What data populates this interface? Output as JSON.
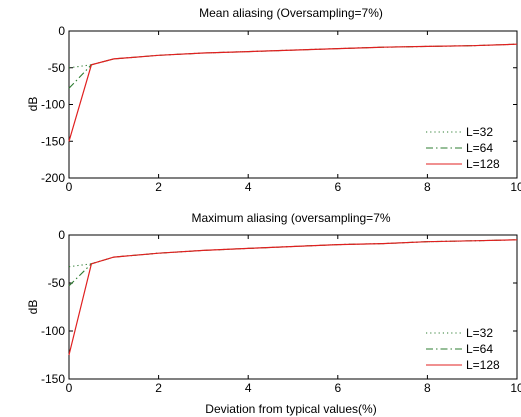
{
  "chart_data": [
    {
      "type": "line",
      "title": "Mean aliasing (Oversampling=7%)",
      "xlabel": "",
      "ylabel": "dB",
      "xlim": [
        0,
        10
      ],
      "ylim": [
        -200,
        0
      ],
      "xticks": [
        "0",
        "2",
        "4",
        "6",
        "8",
        "10"
      ],
      "yticks": [
        "0",
        "-50",
        "-100",
        "-150",
        "-200"
      ],
      "grid": false,
      "legend": "bottom-right",
      "series": [
        {
          "name": "L=32",
          "style": "dotted",
          "color": "#2e7d32",
          "x": [
            0,
            0.5,
            1,
            2,
            3,
            4,
            5,
            6,
            7,
            8,
            9,
            10
          ],
          "y": [
            -50,
            -46,
            -38,
            -33,
            -30,
            -28,
            -26,
            -24,
            -22,
            -21,
            -20,
            -18
          ]
        },
        {
          "name": "L=64",
          "style": "dashdot",
          "color": "#2e7d32",
          "x": [
            0,
            0.5,
            1,
            2,
            3,
            4,
            5,
            6,
            7,
            8,
            9,
            10
          ],
          "y": [
            -78,
            -46,
            -38,
            -33,
            -30,
            -28,
            -26,
            -24,
            -22,
            -21,
            -20,
            -18
          ]
        },
        {
          "name": "L=128",
          "style": "solid",
          "color": "#e02020",
          "x": [
            0,
            0.5,
            1,
            2,
            3,
            4,
            5,
            6,
            7,
            8,
            9,
            10
          ],
          "y": [
            -150,
            -46,
            -38,
            -33,
            -30,
            -28,
            -26,
            -24,
            -22,
            -21,
            -20,
            -18
          ]
        }
      ]
    },
    {
      "type": "line",
      "title": "Maximum aliasing (oversampling=7%",
      "xlabel": "Deviation from typical values(%)",
      "ylabel": "dB",
      "xlim": [
        0,
        10
      ],
      "ylim": [
        -150,
        0
      ],
      "xticks": [
        "0",
        "2",
        "4",
        "6",
        "8",
        "10"
      ],
      "yticks": [
        "0",
        "-50",
        "-100",
        "-150"
      ],
      "grid": false,
      "legend": "bottom-right",
      "series": [
        {
          "name": "L=32",
          "style": "dotted",
          "color": "#2e7d32",
          "x": [
            0,
            0.5,
            1,
            2,
            3,
            4,
            5,
            6,
            7,
            8,
            9,
            10
          ],
          "y": [
            -33,
            -30,
            -23,
            -19,
            -16,
            -14,
            -12,
            -10,
            -9,
            -7,
            -6,
            -5
          ]
        },
        {
          "name": "L=64",
          "style": "dashdot",
          "color": "#2e7d32",
          "x": [
            0,
            0.5,
            1,
            2,
            3,
            4,
            5,
            6,
            7,
            8,
            9,
            10
          ],
          "y": [
            -53,
            -30,
            -23,
            -19,
            -16,
            -14,
            -12,
            -10,
            -9,
            -7,
            -6,
            -5
          ]
        },
        {
          "name": "L=128",
          "style": "solid",
          "color": "#e02020",
          "x": [
            0,
            0.5,
            1,
            2,
            3,
            4,
            5,
            6,
            7,
            8,
            9,
            10
          ],
          "y": [
            -125,
            -30,
            -23,
            -19,
            -16,
            -14,
            -12,
            -10,
            -9,
            -7,
            -6,
            -5
          ]
        }
      ]
    }
  ]
}
